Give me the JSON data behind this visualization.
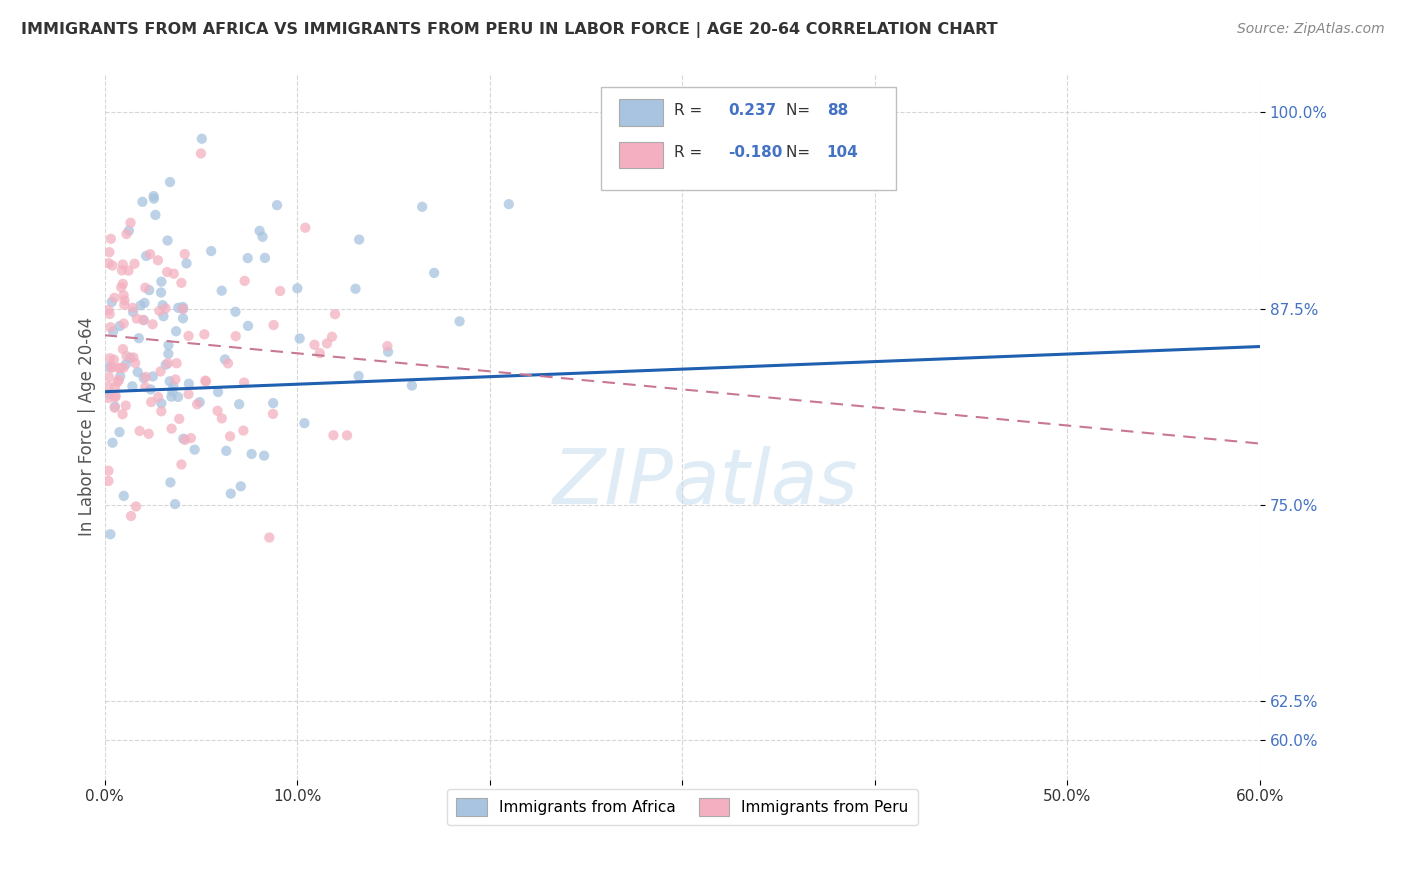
{
  "title": "IMMIGRANTS FROM AFRICA VS IMMIGRANTS FROM PERU IN LABOR FORCE | AGE 20-64 CORRELATION CHART",
  "source": "Source: ZipAtlas.com",
  "ylabel_label": "In Labor Force | Age 20-64",
  "xlim": [
    0.0,
    0.6
  ],
  "ylim": [
    0.575,
    1.025
  ],
  "x_ticks": [
    0.0,
    0.1,
    0.2,
    0.3,
    0.4,
    0.5,
    0.6
  ],
  "y_ticks": [
    0.6,
    0.625,
    0.75,
    0.875,
    1.0
  ],
  "africa_R": 0.237,
  "africa_N": 88,
  "peru_R": -0.18,
  "peru_N": 104,
  "watermark": "ZIPatlas",
  "africa_dot_color": "#a8c4e0",
  "peru_dot_color": "#f4b0c0",
  "africa_line_color": "#2060b0",
  "peru_line_color": "#c87890",
  "legend_africa_label": "Immigrants from Africa",
  "legend_peru_label": "Immigrants from Peru",
  "africa_line_intercept": 0.822,
  "africa_line_slope": 0.048,
  "peru_line_intercept": 0.858,
  "peru_line_slope": -0.115,
  "title_fontsize": 11.5,
  "source_fontsize": 10,
  "tick_fontsize": 11,
  "ylabel_fontsize": 12,
  "legend_fontsize": 11,
  "watermark_fontsize": 55,
  "dot_size": 55,
  "dot_alpha": 0.75,
  "grid_color": "#cccccc",
  "tick_color_y": "#4472c4",
  "tick_color_x": "#333333",
  "title_color": "#333333",
  "source_color": "#888888",
  "ylabel_color": "#555555"
}
